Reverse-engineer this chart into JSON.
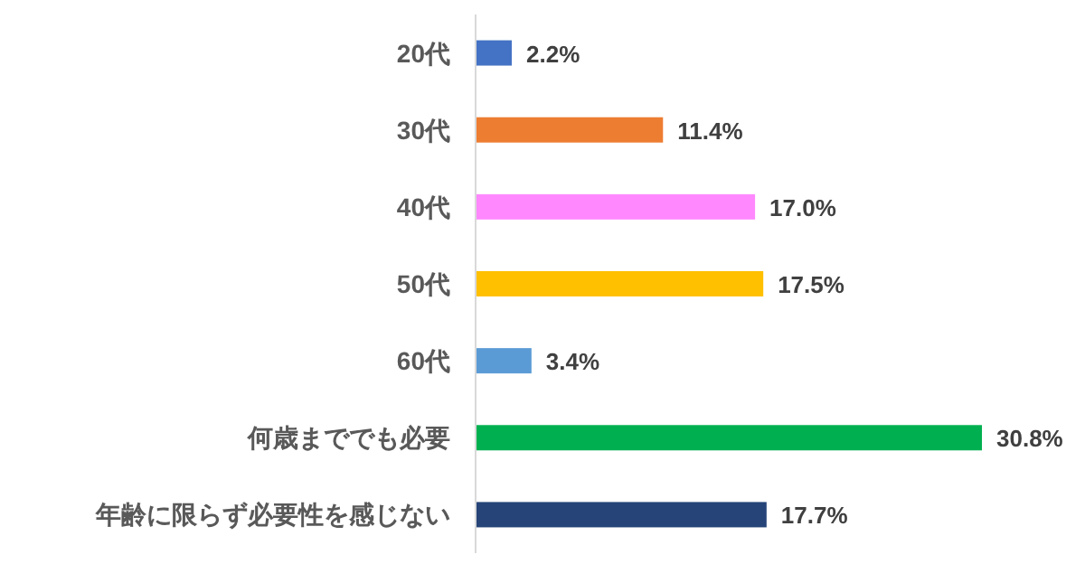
{
  "chart_data": {
    "type": "bar",
    "orientation": "horizontal",
    "categories": [
      "20代",
      "30代",
      "40代",
      "50代",
      "60代",
      "何歳まででも必要",
      "年齢に限らず必要性を感じない"
    ],
    "values": [
      2.2,
      11.4,
      17.0,
      17.5,
      3.4,
      30.8,
      17.7
    ],
    "colors": [
      "#4472c4",
      "#ed7d31",
      "#ff88ff",
      "#ffc000",
      "#5b9bd5",
      "#00b050",
      "#264478"
    ],
    "value_labels": [
      "2.2%",
      "11.4%",
      "17.0%",
      "17.5%",
      "3.4%",
      "30.8%",
      "17.7%"
    ]
  }
}
